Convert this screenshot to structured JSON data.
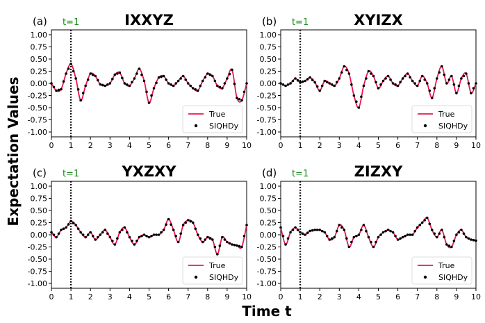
{
  "colors": {
    "true_line": "#e8174f",
    "points": "#000000",
    "marker_text": "#1a8a1a",
    "vline": "#000000"
  },
  "labels": {
    "xlabel": "Time t",
    "ylabel": "Expectation Values",
    "marker": "t=1"
  },
  "chart_data": [
    {
      "type": "line",
      "panel": "(a)",
      "title": "IXXYZ",
      "xlim": [
        0,
        10
      ],
      "ylim": [
        -1.1,
        1.1
      ],
      "xticks": [
        "0",
        "1",
        "2",
        "3",
        "4",
        "5",
        "6",
        "7",
        "8",
        "9",
        "10"
      ],
      "yticks": [
        "1.00",
        "0.75",
        "0.50",
        "0.25",
        "0.00",
        "-0.25",
        "-0.50",
        "-0.75",
        "-1.00"
      ],
      "vline_x": 1,
      "legend": "lower-right",
      "series": [
        {
          "name": "True"
        },
        {
          "name": "SIQHDy"
        }
      ],
      "x": [
        0,
        0.25,
        0.5,
        0.75,
        1,
        1.25,
        1.5,
        1.75,
        2,
        2.25,
        2.5,
        2.75,
        3,
        3.25,
        3.5,
        3.75,
        4,
        4.25,
        4.5,
        4.75,
        5,
        5.25,
        5.5,
        5.75,
        6,
        6.25,
        6.5,
        6.75,
        7,
        7.25,
        7.5,
        7.75,
        8,
        8.25,
        8.5,
        8.75,
        9,
        9.25,
        9.5,
        9.75,
        10
      ],
      "y": [
        0,
        -0.15,
        -0.12,
        0.2,
        0.4,
        0.1,
        -0.35,
        -0.05,
        0.2,
        0.15,
        -0.02,
        -0.05,
        0.0,
        0.18,
        0.22,
        0.0,
        -0.05,
        0.1,
        0.3,
        0.05,
        -0.4,
        -0.1,
        0.12,
        0.15,
        0.0,
        -0.05,
        0.05,
        0.15,
        0.0,
        -0.1,
        -0.15,
        0.05,
        0.2,
        0.15,
        -0.05,
        -0.1,
        0.1,
        0.28,
        -0.3,
        -0.35,
        0.0
      ]
    },
    {
      "type": "line",
      "panel": "(b)",
      "title": "XYIZX",
      "xlim": [
        0,
        10
      ],
      "ylim": [
        -1.1,
        1.1
      ],
      "xticks": [
        "0",
        "1",
        "2",
        "3",
        "4",
        "5",
        "6",
        "7",
        "8",
        "9",
        "10"
      ],
      "yticks": [
        "1.00",
        "0.75",
        "0.50",
        "0.25",
        "0.00",
        "-0.25",
        "-0.50",
        "-0.75",
        "-1.00"
      ],
      "vline_x": 1,
      "legend": "lower-right",
      "series": [
        {
          "name": "True"
        },
        {
          "name": "SIQHDy"
        }
      ],
      "x": [
        0,
        0.25,
        0.5,
        0.75,
        1,
        1.25,
        1.5,
        1.75,
        2,
        2.25,
        2.5,
        2.75,
        3,
        3.25,
        3.5,
        3.75,
        4,
        4.25,
        4.5,
        4.75,
        5,
        5.25,
        5.5,
        5.75,
        6,
        6.25,
        6.5,
        6.75,
        7,
        7.25,
        7.5,
        7.75,
        8,
        8.25,
        8.5,
        8.75,
        9,
        9.25,
        9.5,
        9.75,
        10
      ],
      "y": [
        0,
        -0.05,
        0.0,
        0.1,
        0.02,
        0.05,
        0.12,
        0.02,
        -0.15,
        0.05,
        0.0,
        -0.05,
        0.1,
        0.35,
        0.2,
        -0.25,
        -0.5,
        -0.05,
        0.25,
        0.15,
        -0.1,
        0.05,
        0.15,
        0.0,
        -0.05,
        0.1,
        0.2,
        0.05,
        -0.05,
        0.15,
        0.0,
        -0.3,
        0.1,
        0.35,
        0.0,
        0.15,
        -0.2,
        0.1,
        0.2,
        -0.2,
        0.0
      ]
    },
    {
      "type": "line",
      "panel": "(c)",
      "title": "YXZXY",
      "xlim": [
        0,
        10
      ],
      "ylim": [
        -1.1,
        1.1
      ],
      "xticks": [
        "0",
        "1",
        "2",
        "3",
        "4",
        "5",
        "6",
        "7",
        "8",
        "9",
        "10"
      ],
      "yticks": [
        "1.00",
        "0.75",
        "0.50",
        "0.25",
        "0.00",
        "-0.25",
        "-0.50",
        "-0.75",
        "-1.00"
      ],
      "vline_x": 1,
      "legend": "lower-right",
      "series": [
        {
          "name": "True"
        },
        {
          "name": "SIQHDy"
        }
      ],
      "x": [
        0,
        0.25,
        0.5,
        0.75,
        1,
        1.25,
        1.5,
        1.75,
        2,
        2.25,
        2.5,
        2.75,
        3,
        3.25,
        3.5,
        3.75,
        4,
        4.25,
        4.5,
        4.75,
        5,
        5.25,
        5.5,
        5.75,
        6,
        6.25,
        6.5,
        6.75,
        7,
        7.25,
        7.5,
        7.75,
        8,
        8.25,
        8.5,
        8.75,
        9,
        9.25,
        9.5,
        9.75,
        10
      ],
      "y": [
        0.05,
        -0.05,
        0.1,
        0.15,
        0.28,
        0.2,
        0.05,
        -0.05,
        0.05,
        -0.1,
        0.0,
        0.1,
        -0.05,
        -0.2,
        0.05,
        0.15,
        -0.05,
        -0.2,
        -0.05,
        0.0,
        -0.05,
        0.0,
        0.0,
        0.1,
        0.32,
        0.1,
        -0.15,
        0.2,
        0.3,
        0.25,
        0.0,
        -0.15,
        -0.05,
        -0.1,
        -0.4,
        -0.05,
        -0.15,
        -0.2,
        -0.22,
        -0.25,
        0.2
      ]
    },
    {
      "type": "line",
      "panel": "(d)",
      "title": "ZIZXY",
      "xlim": [
        0,
        10
      ],
      "ylim": [
        -1.1,
        1.1
      ],
      "xticks": [
        "0",
        "1",
        "2",
        "3",
        "4",
        "5",
        "6",
        "7",
        "8",
        "9",
        "10"
      ],
      "yticks": [
        "1.00",
        "0.75",
        "0.50",
        "0.25",
        "0.00",
        "-0.25",
        "-0.50",
        "-0.75",
        "-1.00"
      ],
      "vline_x": 1,
      "legend": "lower-right",
      "series": [
        {
          "name": "True"
        },
        {
          "name": "SIQHDy"
        }
      ],
      "x": [
        0,
        0.25,
        0.5,
        0.75,
        1,
        1.25,
        1.5,
        1.75,
        2,
        2.25,
        2.5,
        2.75,
        3,
        3.25,
        3.5,
        3.75,
        4,
        4.25,
        4.5,
        4.75,
        5,
        5.25,
        5.5,
        5.75,
        6,
        6.25,
        6.5,
        6.75,
        7,
        7.25,
        7.5,
        7.75,
        8,
        8.25,
        8.5,
        8.75,
        9,
        9.25,
        9.5,
        9.75,
        10
      ],
      "y": [
        0.15,
        -0.2,
        0.05,
        0.15,
        0.05,
        0.0,
        0.08,
        0.1,
        0.1,
        0.05,
        -0.1,
        -0.05,
        0.2,
        0.1,
        -0.25,
        -0.05,
        0.0,
        0.2,
        -0.05,
        -0.25,
        -0.05,
        0.05,
        0.1,
        0.05,
        -0.1,
        -0.05,
        0.0,
        0.0,
        0.15,
        0.25,
        0.35,
        0.1,
        -0.05,
        0.1,
        -0.2,
        -0.25,
        0.0,
        0.1,
        -0.05,
        -0.1,
        -0.12
      ]
    }
  ]
}
